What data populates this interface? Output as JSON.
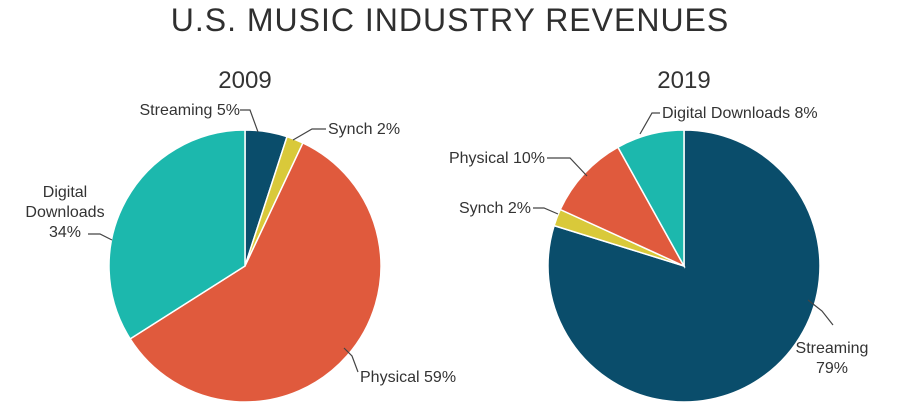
{
  "title": "U.S. MUSIC INDUSTRY REVENUES",
  "chart_data": [
    {
      "type": "pie",
      "title": "2009",
      "slices": [
        {
          "label": "Streaming 5%",
          "name": "Streaming",
          "value": 5,
          "color": "#0a4d6b"
        },
        {
          "label": "Synch 2%",
          "name": "Synch",
          "value": 2,
          "color": "#d9c93a"
        },
        {
          "label": "Physical 59%",
          "name": "Physical",
          "value": 59,
          "color": "#e05a3d"
        },
        {
          "label": "Digital\nDownloads\n34%",
          "name": "Digital Downloads",
          "value": 34,
          "color": "#1cb8ad"
        }
      ]
    },
    {
      "type": "pie",
      "title": "2019",
      "slices": [
        {
          "label": "Streaming\n79%",
          "name": "Streaming",
          "value": 79,
          "color": "#0a4d6b"
        },
        {
          "label": "Synch 2%",
          "name": "Synch",
          "value": 2,
          "color": "#d9c93a"
        },
        {
          "label": "Physical 10%",
          "name": "Physical",
          "value": 10,
          "color": "#e05a3d"
        },
        {
          "label": "Digital Downloads 8%",
          "name": "Digital Downloads",
          "value": 8,
          "color": "#1cb8ad"
        }
      ]
    }
  ]
}
